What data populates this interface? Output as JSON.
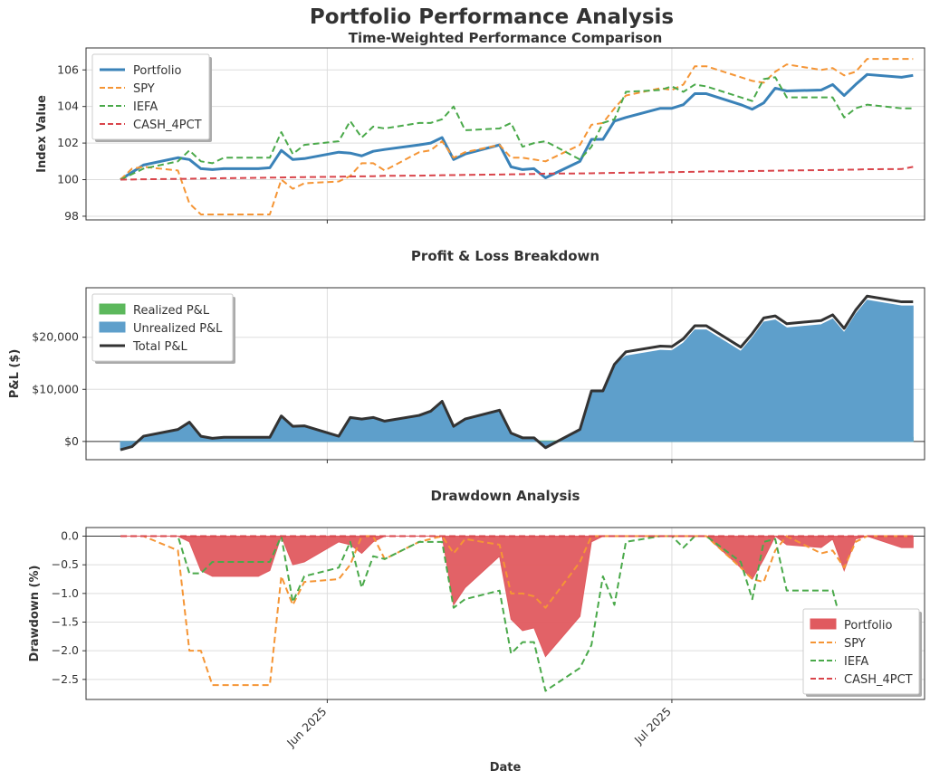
{
  "figure": {
    "title": "Portfolio Performance Analysis",
    "xlabel": "Date",
    "date_ticks": [
      {
        "date": "2025-06-01",
        "label": "Jun 2025"
      },
      {
        "date": "2025-07-01",
        "label": "Jul 2025"
      }
    ]
  },
  "colors": {
    "portfolio": "#3a82b8",
    "spy": "#f59535",
    "iefa": "#4aa94a",
    "cash": "#d9454b",
    "realized": "#5cb85c",
    "unrealized": "#5e9fcb",
    "total": "#333333",
    "drawdown_fill": "#e05a5f"
  },
  "chart_data": [
    {
      "type": "line",
      "title": "Time-Weighted Performance Comparison",
      "ylabel": "Index Value",
      "ylim": [
        97.8,
        107.2
      ],
      "yticks": [
        98,
        100,
        102,
        104,
        106
      ],
      "xlim": [
        "2025-05-11",
        "2025-07-23"
      ],
      "grid": true,
      "legend_position": "top-left",
      "x": [
        "2025-05-14",
        "2025-05-15",
        "2025-05-16",
        "2025-05-19",
        "2025-05-20",
        "2025-05-21",
        "2025-05-22",
        "2025-05-23",
        "2025-05-26",
        "2025-05-27",
        "2025-05-28",
        "2025-05-29",
        "2025-05-30",
        "2025-06-02",
        "2025-06-03",
        "2025-06-04",
        "2025-06-05",
        "2025-06-06",
        "2025-06-09",
        "2025-06-10",
        "2025-06-11",
        "2025-06-12",
        "2025-06-13",
        "2025-06-16",
        "2025-06-17",
        "2025-06-18",
        "2025-06-19",
        "2025-06-20",
        "2025-06-23",
        "2025-06-24",
        "2025-06-25",
        "2025-06-26",
        "2025-06-27",
        "2025-06-30",
        "2025-07-01",
        "2025-07-02",
        "2025-07-03",
        "2025-07-04",
        "2025-07-07",
        "2025-07-08",
        "2025-07-09",
        "2025-07-10",
        "2025-07-11",
        "2025-07-14",
        "2025-07-15",
        "2025-07-16",
        "2025-07-17",
        "2025-07-18",
        "2025-07-21",
        "2025-07-22"
      ],
      "series": [
        {
          "name": "Portfolio",
          "style": "solid",
          "values": [
            100.0,
            100.4,
            100.8,
            101.2,
            101.1,
            100.6,
            100.55,
            100.6,
            100.6,
            100.65,
            101.6,
            101.1,
            101.15,
            101.5,
            101.45,
            101.3,
            101.55,
            101.65,
            101.9,
            102.0,
            102.3,
            101.1,
            101.4,
            101.9,
            100.7,
            100.55,
            100.6,
            100.1,
            101.0,
            102.2,
            102.2,
            103.2,
            103.4,
            103.9,
            103.9,
            104.1,
            104.7,
            104.7,
            104.1,
            103.85,
            104.2,
            105.0,
            104.85,
            104.9,
            105.2,
            104.6,
            105.2,
            105.75,
            105.6,
            105.7
          ]
        },
        {
          "name": "SPY",
          "style": "dashed",
          "values": [
            100.0,
            100.6,
            100.7,
            100.5,
            98.7,
            98.1,
            98.1,
            98.1,
            98.1,
            98.1,
            100.0,
            99.5,
            99.8,
            99.9,
            100.2,
            100.9,
            100.9,
            100.5,
            101.5,
            101.6,
            102.1,
            101.2,
            101.5,
            101.9,
            101.2,
            101.2,
            101.1,
            101.0,
            101.9,
            103.0,
            103.1,
            103.9,
            104.6,
            105.0,
            104.9,
            105.2,
            106.2,
            106.2,
            105.6,
            105.4,
            105.3,
            105.9,
            106.3,
            106.0,
            106.1,
            105.7,
            105.9,
            106.6,
            106.6,
            106.6
          ]
        },
        {
          "name": "IEFA",
          "style": "dashed",
          "values": [
            100.0,
            100.3,
            100.6,
            101.0,
            101.6,
            101.0,
            100.9,
            101.2,
            101.2,
            101.2,
            102.6,
            101.4,
            101.9,
            102.1,
            103.2,
            102.3,
            102.9,
            102.8,
            103.1,
            103.1,
            103.3,
            104.0,
            102.7,
            102.8,
            103.1,
            101.8,
            102.0,
            102.1,
            101.1,
            101.8,
            103.1,
            103.3,
            104.8,
            104.9,
            105.1,
            104.8,
            105.2,
            105.1,
            104.5,
            104.3,
            105.5,
            105.6,
            104.5,
            104.5,
            104.5,
            103.4,
            103.9,
            104.1,
            103.9,
            103.9
          ]
        },
        {
          "name": "CASH_4PCT",
          "style": "dashed",
          "values": [
            100.0,
            100.01,
            100.02,
            100.04,
            100.05,
            100.06,
            100.07,
            100.08,
            100.1,
            100.11,
            100.12,
            100.13,
            100.14,
            100.16,
            100.17,
            100.18,
            100.19,
            100.21,
            100.22,
            100.23,
            100.24,
            100.25,
            100.26,
            100.28,
            100.29,
            100.3,
            100.31,
            100.33,
            100.34,
            100.35,
            100.36,
            100.37,
            100.38,
            100.4,
            100.41,
            100.42,
            100.43,
            100.45,
            100.46,
            100.47,
            100.48,
            100.49,
            100.5,
            100.52,
            100.53,
            100.54,
            100.55,
            100.57,
            100.58,
            100.7
          ]
        }
      ]
    },
    {
      "type": "area",
      "title": "Profit & Loss Breakdown",
      "ylabel": "P&L ($)",
      "ylim": [
        -3500,
        29500
      ],
      "yticks": [
        0,
        10000,
        20000
      ],
      "ytick_labels": [
        "$0",
        "$10,000",
        "$20,000"
      ],
      "grid": true,
      "legend_position": "top-left",
      "x": [
        "2025-05-14",
        "2025-05-15",
        "2025-05-16",
        "2025-05-19",
        "2025-05-20",
        "2025-05-21",
        "2025-05-22",
        "2025-05-23",
        "2025-05-26",
        "2025-05-27",
        "2025-05-28",
        "2025-05-29",
        "2025-05-30",
        "2025-06-02",
        "2025-06-03",
        "2025-06-04",
        "2025-06-05",
        "2025-06-06",
        "2025-06-09",
        "2025-06-10",
        "2025-06-11",
        "2025-06-12",
        "2025-06-13",
        "2025-06-16",
        "2025-06-17",
        "2025-06-18",
        "2025-06-19",
        "2025-06-20",
        "2025-06-23",
        "2025-06-24",
        "2025-06-25",
        "2025-06-26",
        "2025-06-27",
        "2025-06-30",
        "2025-07-01",
        "2025-07-02",
        "2025-07-03",
        "2025-07-04",
        "2025-07-07",
        "2025-07-08",
        "2025-07-09",
        "2025-07-10",
        "2025-07-11",
        "2025-07-14",
        "2025-07-15",
        "2025-07-16",
        "2025-07-17",
        "2025-07-18",
        "2025-07-21",
        "2025-07-22"
      ],
      "series": [
        {
          "name": "Realized P&L",
          "style": "fill",
          "values": [
            0,
            0,
            0,
            0,
            0,
            0,
            0,
            0,
            0,
            0,
            0,
            100,
            100,
            100,
            100,
            100,
            100,
            100,
            100,
            100,
            100,
            100,
            100,
            100,
            100,
            100,
            100,
            100,
            100,
            100,
            100,
            100,
            800,
            800,
            800,
            800,
            800,
            800,
            800,
            800,
            800,
            800,
            800,
            800,
            800,
            800,
            800,
            800,
            800,
            800
          ]
        },
        {
          "name": "Unrealized P&L",
          "style": "fill",
          "values": [
            -1600,
            -1000,
            1000,
            2300,
            3700,
            1000,
            600,
            800,
            800,
            800,
            4900,
            2800,
            2900,
            900,
            4500,
            4200,
            4500,
            3800,
            4900,
            5700,
            7600,
            2800,
            4200,
            5900,
            1500,
            600,
            600,
            -1300,
            2200,
            9600,
            9600,
            14700,
            16400,
            17500,
            17400,
            18900,
            21400,
            21400,
            17300,
            19900,
            22900,
            23300,
            21800,
            22400,
            23500,
            20900,
            24400,
            27100,
            26000,
            26000
          ]
        },
        {
          "name": "Total P&L",
          "style": "solid",
          "values": [
            -1600,
            -1000,
            1000,
            2300,
            3700,
            1000,
            600,
            800,
            800,
            800,
            4900,
            2900,
            3000,
            1000,
            4600,
            4300,
            4600,
            3900,
            5000,
            5800,
            7700,
            2900,
            4300,
            6000,
            1600,
            700,
            700,
            -1200,
            2300,
            9700,
            9700,
            14800,
            17200,
            18300,
            18200,
            19700,
            22200,
            22200,
            18100,
            20700,
            23700,
            24100,
            22600,
            23200,
            24300,
            21700,
            25200,
            27900,
            26800,
            26800
          ]
        }
      ]
    },
    {
      "type": "area",
      "title": "Drawdown Analysis",
      "ylabel": "Drawdown (%)",
      "ylim": [
        -2.85,
        0.15
      ],
      "yticks": [
        0.0,
        -0.5,
        -1.0,
        -1.5,
        -2.0,
        -2.5
      ],
      "ytick_labels": [
        "0.0",
        "−0.5",
        "−1.0",
        "−1.5",
        "−2.0",
        "−2.5"
      ],
      "grid": true,
      "legend_position": "bottom-right",
      "x": [
        "2025-05-14",
        "2025-05-15",
        "2025-05-16",
        "2025-05-19",
        "2025-05-20",
        "2025-05-21",
        "2025-05-22",
        "2025-05-23",
        "2025-05-26",
        "2025-05-27",
        "2025-05-28",
        "2025-05-29",
        "2025-05-30",
        "2025-06-02",
        "2025-06-03",
        "2025-06-04",
        "2025-06-05",
        "2025-06-06",
        "2025-06-09",
        "2025-06-10",
        "2025-06-11",
        "2025-06-12",
        "2025-06-13",
        "2025-06-16",
        "2025-06-17",
        "2025-06-18",
        "2025-06-19",
        "2025-06-20",
        "2025-06-23",
        "2025-06-24",
        "2025-06-25",
        "2025-06-26",
        "2025-06-27",
        "2025-06-30",
        "2025-07-01",
        "2025-07-02",
        "2025-07-03",
        "2025-07-04",
        "2025-07-07",
        "2025-07-08",
        "2025-07-09",
        "2025-07-10",
        "2025-07-11",
        "2025-07-14",
        "2025-07-15",
        "2025-07-16",
        "2025-07-17",
        "2025-07-18",
        "2025-07-21",
        "2025-07-22"
      ],
      "series": [
        {
          "name": "Portfolio",
          "style": "fill",
          "values": [
            0,
            0,
            0,
            0,
            -0.1,
            -0.6,
            -0.7,
            -0.7,
            -0.7,
            -0.6,
            0,
            -0.5,
            -0.45,
            -0.1,
            -0.15,
            -0.3,
            -0.1,
            0,
            0,
            0,
            0,
            -1.2,
            -0.9,
            -0.35,
            -1.45,
            -1.65,
            -1.6,
            -2.1,
            -1.4,
            -0.1,
            0,
            0,
            0,
            0,
            0,
            0,
            0,
            0,
            -0.55,
            -0.75,
            -0.4,
            0,
            -0.15,
            -0.2,
            -0.05,
            -0.6,
            -0.05,
            0,
            -0.2,
            -0.2
          ]
        },
        {
          "name": "SPY",
          "style": "dashed",
          "values": [
            0,
            0,
            0,
            -0.25,
            -2.0,
            -2.0,
            -2.6,
            -2.6,
            -2.6,
            -2.6,
            -0.7,
            -1.2,
            -0.8,
            -0.75,
            -0.5,
            0,
            0,
            -0.4,
            -0.1,
            -0.05,
            0,
            -0.3,
            -0.05,
            -0.15,
            -1.0,
            -1.0,
            -1.05,
            -1.25,
            -0.45,
            0,
            0,
            0,
            0,
            0,
            0,
            0,
            0,
            0,
            -0.55,
            -0.75,
            -0.8,
            -0.25,
            0,
            -0.3,
            -0.25,
            -0.55,
            -0.1,
            0,
            0,
            0
          ]
        },
        {
          "name": "IEFA",
          "style": "dashed",
          "values": [
            0,
            0,
            0,
            0,
            -0.65,
            -0.65,
            -0.45,
            -0.45,
            -0.45,
            -0.45,
            0,
            -1.15,
            -0.7,
            -0.55,
            -0.1,
            -0.9,
            -0.35,
            -0.4,
            -0.1,
            -0.1,
            -0.1,
            -1.25,
            -1.1,
            -0.95,
            -2.05,
            -1.85,
            -1.85,
            -2.7,
            -2.3,
            -1.9,
            -0.7,
            -1.2,
            -0.1,
            0,
            0,
            -0.2,
            0,
            0,
            -0.45,
            -1.1,
            -0.1,
            -0.05,
            -0.95,
            -0.95,
            -0.95,
            -1.7,
            -1.6,
            -1.4,
            -1.45,
            -1.45
          ]
        },
        {
          "name": "CASH_4PCT",
          "style": "dashed",
          "values": [
            0,
            0,
            0,
            0,
            0,
            0,
            0,
            0,
            0,
            0,
            0,
            0,
            0,
            0,
            0,
            0,
            0,
            0,
            0,
            0,
            0,
            0,
            0,
            0,
            0,
            0,
            0,
            0,
            0,
            0,
            0,
            0,
            0,
            0,
            0,
            0,
            0,
            0,
            0,
            0,
            0,
            0,
            0,
            0,
            0,
            0,
            0,
            0,
            0,
            0
          ]
        }
      ]
    }
  ]
}
